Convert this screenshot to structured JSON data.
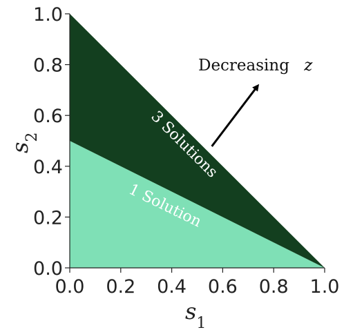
{
  "chart_data": {
    "type": "area",
    "xlabel_base": "s",
    "xlabel_sub": "1",
    "ylabel_base": "s",
    "ylabel_sub": "2",
    "xlim": [
      0.0,
      1.0
    ],
    "ylim": [
      0.0,
      1.0
    ],
    "x_ticks": [
      0.0,
      0.2,
      0.4,
      0.6,
      0.8,
      1.0
    ],
    "y_ticks": [
      0.0,
      0.2,
      0.4,
      0.6,
      0.8,
      1.0
    ],
    "x_tick_labels": [
      "0.0",
      "0.2",
      "0.4",
      "0.6",
      "0.8",
      "1.0"
    ],
    "y_tick_labels": [
      "0.0",
      "0.2",
      "0.4",
      "0.6",
      "0.8",
      "1.0"
    ],
    "grid": false,
    "regions": [
      {
        "name": "1 Solution",
        "color": "#7fe0b6",
        "polygon": [
          [
            0.0,
            0.0
          ],
          [
            1.0,
            0.0
          ],
          [
            0.0,
            0.5
          ]
        ]
      },
      {
        "name": "3 Solutions",
        "color": "#133f1f",
        "polygon": [
          [
            0.0,
            0.5
          ],
          [
            1.0,
            0.0
          ],
          [
            0.0,
            1.0
          ]
        ]
      }
    ],
    "annotation": {
      "text": "Decreasing",
      "variable": "z",
      "arrow_from": [
        0.56,
        0.56
      ],
      "arrow_to": [
        0.74,
        0.74
      ]
    }
  }
}
